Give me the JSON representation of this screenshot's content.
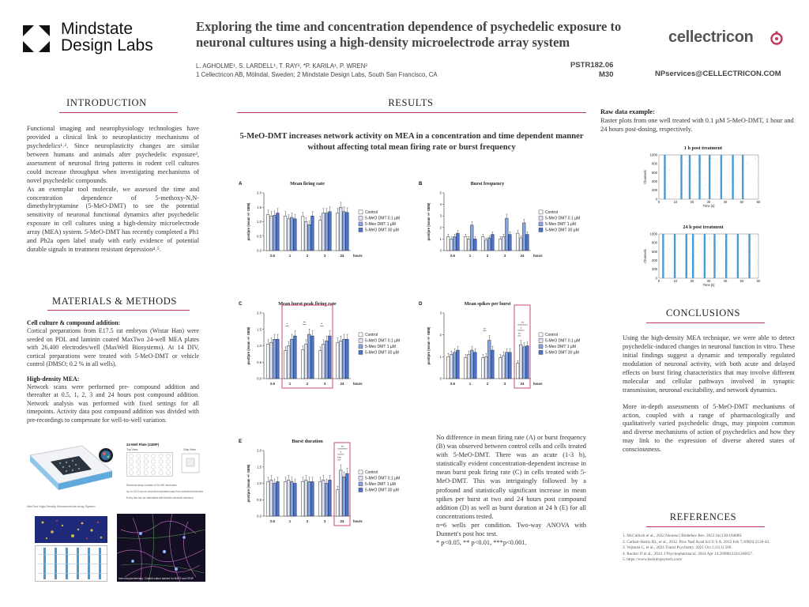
{
  "header": {
    "logo_line1": "Mindstate",
    "logo_line2": "Design Labs",
    "title": "Exploring the time and concentration dependence of psychedelic exposure to neuronal cultures using a high-density microelectrode array system",
    "authors": "L. AGHOLME¹, S. LARDELL¹, T. RAY², *P. KARILA¹, P. WREN²",
    "affiliations": "1 Cellectricon AB, Mölndal, Sweden; 2 Mindstate Design Labs, South San Francisco, CA",
    "poster_id": "PSTR182.06",
    "board": "M30",
    "email": "NPservices@CELLECTRICON.COM",
    "brand": "cellectricon",
    "accent": "#c0395a"
  },
  "intro": {
    "heading": "INTRODUCTION",
    "p1": "Functional imaging and neurophysiology technologies have provided a clinical link to neuroplasticity mechanisms of psychedelics¹˒². Since neuroplasticity changes are similar between humans and animals after psychedelic exposure³, assessment of neuronal firing patterns in rodent cell cultures could increase throughput when investigating mechanisms of novel psychedelic compounds.",
    "p2": "As an exemplar tool molecule, we assessed the time and concentration dependence of 5-methoxy-N,N-dimethyltryptamine (5-MeO-DMT) to see the potential sensitivity of neuronal functional dynamics after psychedelic exposure in cell cultures using a high-density microelectrode array (MEA) system. 5-MeO-DMT has recently completed a Ph1 and Ph2a open label study with early evidence of potential durable signals in treatment resistant depression⁴˒⁵."
  },
  "methods": {
    "heading": "MATERIALS & METHODS",
    "sub1": "Cell culture & compound addition:",
    "p1": "Cortical preparations from E17.5 rat embryos (Wistar Han) were seeded on PDL and laminin coated MaxTwo 24-well MEA plates with 26,400 electrodes/well (MaxWell Biosystems). At 14 DIV, cortical preparations were treated with 5-MeO-DMT or vehicle control (DMSO; 0.2 % in all wells).",
    "sub2": "High-density MEA:",
    "p2": "Network scans were performed pre- compound addition and thereafter at 0.5, 1, 2, 3 and 24 hours post compound addition. Network analysis was performed with fixed settings for all timepoints. Activity data post compound addition was divided with pre-recordings to compensate for well-to-well variation.",
    "plate_caption": "MaxTwo High-Density Microelectrode Array System",
    "diagram_title": "24-Well Plate (24WP)",
    "diagram_sub1": "Top View",
    "diagram_sub2": "Chip View",
    "diagram_note1": "Electrode array consists of 26,400 electrodes",
    "diagram_note2": "Up to 1024 can be recorded simultaneously from selected electrodes",
    "diagram_note3": "Every site can be stimulated with flexible electrode selection",
    "micro_caption": "Immunocytochemistry: Cortical culture stained for MAP2 and GFAP"
  },
  "results": {
    "heading": "RESULTS",
    "subtitle": "5-MeO-DMT increases network activity on MEA in a concentration and time dependent manner without affecting total mean firing rate or burst frequency",
    "legend": [
      "Control",
      "5-MeO DMT 0.1 µM",
      "5-Meo DMT 1 µM",
      "5-MeO DMT 30 µM"
    ],
    "series_colors": [
      "#ffffff",
      "#dde5f4",
      "#8aa5dc",
      "#4f73c6"
    ],
    "text_p1": "No difference in mean firing rate (A) or burst frequency (B) was observed between control cells and cells treated with 5-MeO-DMT. There was an acute (1-3 h), statistically evident concentration-dependent increase in mean burst peak firing rate (C) in cells treated with 5-MeO-DMT. This was intriguingly followed by a profound and statistically significant increase in mean spikes per burst at two and 24 hours post compound addition (D) as well as burst duration at 24 h (E) for all concentrations tested.",
    "text_p2": "n=6 wells per condition. Two-way ANOVA with Dunnett's post hoc test.",
    "text_p3": "* p<0.05, ** p<0.01, ***p<0.001."
  },
  "chart_data": [
    {
      "type": "bar",
      "letter": "A",
      "title": "Mean firing rate",
      "ylabel": "post/pre (mean +/- SEM)",
      "xlabel": "hours",
      "categories": [
        "0.5",
        "1",
        "2",
        "3",
        "24"
      ],
      "ylim": [
        0,
        2.0
      ],
      "yticks": [
        "0.0",
        "0.5",
        "1.0",
        "1.5",
        "2.0"
      ],
      "series": [
        {
          "name": "Control",
          "values": [
            1.25,
            1.2,
            1.18,
            1.05,
            1.3
          ]
        },
        {
          "name": "5-MeO DMT 0.1 µM",
          "values": [
            1.2,
            1.1,
            1.0,
            1.3,
            1.5
          ]
        },
        {
          "name": "5-Meo DMT 1 µM",
          "values": [
            1.22,
            1.15,
            0.9,
            1.3,
            1.35
          ]
        },
        {
          "name": "5-MeO DMT 30 µM",
          "values": [
            1.3,
            1.1,
            1.2,
            1.35,
            1.32
          ]
        }
      ],
      "annotations": []
    },
    {
      "type": "bar",
      "letter": "B",
      "title": "Burst frequency",
      "ylabel": "post/pre (mean +/- SEM)",
      "xlabel": "hours",
      "categories": [
        "0.5",
        "1",
        "2",
        "3",
        "24"
      ],
      "ylim": [
        0,
        5
      ],
      "yticks": [
        "0",
        "1",
        "2",
        "3",
        "4",
        "5"
      ],
      "series": [
        {
          "name": "Control",
          "values": [
            1.2,
            1.2,
            1.2,
            1.0,
            1.5
          ]
        },
        {
          "name": "5-MeO DMT 0.1 µM",
          "values": [
            1.0,
            1.0,
            0.9,
            1.2,
            1.1
          ]
        },
        {
          "name": "5-Meo DMT 1 µM",
          "values": [
            1.2,
            2.2,
            1.1,
            2.8,
            2.4
          ]
        },
        {
          "name": "5-MeO DMT 30 µM",
          "values": [
            1.5,
            1.0,
            1.4,
            1.4,
            1.4
          ]
        }
      ],
      "annotations": []
    },
    {
      "type": "bar",
      "letter": "C",
      "title": "Mean burst peak firing rate",
      "ylabel": "post/pre (mean +/- SEM)",
      "xlabel": "hours",
      "categories": [
        "0.5",
        "1",
        "2",
        "3",
        "24"
      ],
      "ylim": [
        0,
        2.0
      ],
      "yticks": [
        "0.0",
        "0.5",
        "1.0",
        "1.5",
        "2.0"
      ],
      "series": [
        {
          "name": "Control",
          "values": [
            1.05,
            0.85,
            0.88,
            0.85,
            1.1
          ]
        },
        {
          "name": "5-MeO DMT 0.1 µM",
          "values": [
            1.1,
            1.0,
            1.05,
            1.05,
            1.15
          ]
        },
        {
          "name": "5-Meo DMT 1 µM",
          "values": [
            1.2,
            1.2,
            1.35,
            1.15,
            1.2
          ]
        },
        {
          "name": "5-MeO DMT 30 µM",
          "values": [
            1.2,
            1.3,
            1.3,
            1.3,
            1.2
          ]
        }
      ],
      "annotations": [
        {
          "cat": 1,
          "label": "*"
        },
        {
          "cat": 2,
          "label": "**"
        },
        {
          "cat": 3,
          "label": "*"
        }
      ],
      "highlight": [
        1,
        3
      ]
    },
    {
      "type": "bar",
      "letter": "D",
      "title": "Mean spikes per burst",
      "ylabel": "post/pre (mean +/- SEM)",
      "xlabel": "hours",
      "categories": [
        "0.5",
        "1",
        "2",
        "3",
        "24"
      ],
      "ylim": [
        0,
        3
      ],
      "yticks": [
        "0",
        "1",
        "2",
        "3"
      ],
      "series": [
        {
          "name": "Control",
          "values": [
            1.0,
            0.95,
            0.95,
            0.95,
            0.7
          ]
        },
        {
          "name": "5-MeO DMT 0.1 µM",
          "values": [
            1.1,
            1.1,
            1.0,
            1.05,
            1.55
          ]
        },
        {
          "name": "5-Meo DMT 1 µM",
          "values": [
            1.2,
            1.3,
            1.75,
            1.2,
            1.45
          ]
        },
        {
          "name": "5-MeO DMT 30 µM",
          "values": [
            1.3,
            1.2,
            1.3,
            1.2,
            1.5
          ]
        }
      ],
      "annotations": [
        {
          "cat": 2,
          "label": "**"
        },
        {
          "cat": 4,
          "label": "**"
        },
        {
          "cat": 4,
          "label": "*"
        },
        {
          "cat": 4,
          "label": "**"
        }
      ],
      "highlight": [
        4,
        4
      ]
    },
    {
      "type": "bar",
      "letter": "E",
      "title": "Burst duration",
      "ylabel": "post/pre (mean +/- SEM)",
      "xlabel": "hours",
      "categories": [
        "0.5",
        "1",
        "2",
        "3",
        "24"
      ],
      "ylim": [
        0,
        2.0
      ],
      "yticks": [
        "0.0",
        "0.5",
        "1.0",
        "1.5",
        "2.0"
      ],
      "series": [
        {
          "name": "Control",
          "values": [
            1.05,
            1.05,
            1.05,
            1.05,
            0.8
          ]
        },
        {
          "name": "5-MeO DMT 0.1 µM",
          "values": [
            1.1,
            1.1,
            1.1,
            1.1,
            1.4
          ]
        },
        {
          "name": "5-Meo DMT 1 µM",
          "values": [
            1.0,
            1.05,
            1.05,
            1.0,
            1.2
          ]
        },
        {
          "name": "5-MeO DMT 30 µM",
          "values": [
            1.05,
            1.0,
            1.05,
            1.1,
            1.3
          ]
        }
      ],
      "annotations": [
        {
          "cat": 4,
          "label": "***"
        },
        {
          "cat": 4,
          "label": "*"
        },
        {
          "cat": 4,
          "label": "**"
        }
      ],
      "highlight": [
        4,
        4
      ]
    }
  ],
  "raster": {
    "heading": "Raw data example:",
    "text": "Raster plots from one well treated with 0.1 µM 5-MeO-DMT, 1 hour and 24 hours post-dosing, respectively.",
    "plot1_title": "1 h post treatment",
    "plot2_title": "24 h post treatment",
    "ylabel": "Channels",
    "xlabel": "Time [s]",
    "yticks": [
      "0",
      "200",
      "400",
      "600",
      "800",
      "1000"
    ],
    "xticks": [
      "0",
      "10",
      "20",
      "30",
      "40",
      "50",
      "60"
    ],
    "bursts1": [
      3,
      13,
      18,
      24,
      30,
      37,
      44,
      50
    ],
    "bursts2": [
      2,
      9,
      16,
      20,
      27,
      33,
      40,
      47,
      54
    ],
    "color": "#4a9ad4"
  },
  "conclusions": {
    "heading": "CONCLUSIONS",
    "p1": "Using the high-density MEA technique, we were able to detect psychedelic-induced changes in neuronal function in vitro. These initial findings suggest a dynamic and temporally regulated modulation of neuronal activity, with both acute and delayed effects on burst firing characteristics that may involve different molecular and cellular pathways involved in synaptic transmission, neuronal excitability, and network dynamics.",
    "p2": "More in-depth assessments of 5-MeO-DMT mechanisms of action, coupled with a range of pharmacologically and qualitatively varied psychedelic drugs, may pinpoint common and diverse mechanisms of action of psychedelics and how they may link to the expression of diverse altered states of consciousness."
  },
  "references": {
    "heading": "REFERENCES",
    "items": [
      "1. McCulloch et al., 2022.Neurosci Biobehav Rev. 2022 Jul;138:104689.",
      "2. Carhart-Harris RL, et al., 2012. Proc Natl Acad Sci U S A. 2012 Feb 7;109(6):2138-43.",
      "3. Vejmola C, et al., 2021.Transl Psychiatry. 2021 Oct 2;11(1):506.",
      "4. Rucker JJ et al., 2024. J Psychopharmacol. 2024 Apr 14:2698811241246857.",
      "5. https://www.beckleypsytech.com/"
    ]
  }
}
